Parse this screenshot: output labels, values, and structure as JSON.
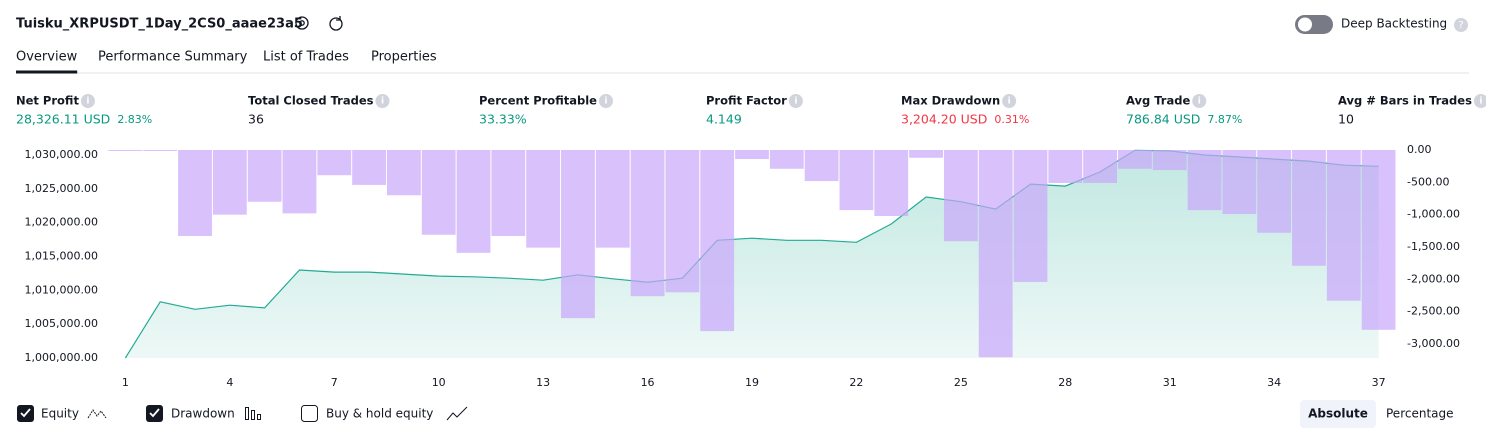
{
  "header": {
    "title": "Tuisku_XRPUSDT_1Day_2CS0_aaae23a5",
    "toggle": "Deep Backtesting"
  },
  "tabs": [
    "Overview",
    "Performance Summary",
    "List of Trades",
    "Properties"
  ],
  "metrics": [
    {
      "label": "Net Profit",
      "value": "28,326.11 USD",
      "extra": "2.83%"
    },
    {
      "label": "Total Closed Trades",
      "value": "36"
    },
    {
      "label": "Percent Profitable",
      "value": "33.33%"
    },
    {
      "label": "Profit Factor",
      "value": "4.149"
    },
    {
      "label": "Max Drawdown",
      "value": "3,204.20 USD",
      "extra": "0.31%"
    },
    {
      "label": "Avg Trade",
      "value": "786.84 USD",
      "extra": "7.87%"
    },
    {
      "label": "Avg # Bars in Trades",
      "value": "10"
    }
  ],
  "chart_data": {
    "type": "combo",
    "x": [
      1,
      2,
      3,
      4,
      5,
      6,
      7,
      8,
      9,
      10,
      11,
      12,
      13,
      14,
      15,
      16,
      17,
      18,
      19,
      20,
      21,
      22,
      23,
      24,
      25,
      26,
      27,
      28,
      29,
      30,
      31,
      32,
      33,
      34,
      35,
      36,
      37
    ],
    "xlim": [
      0.5,
      37.5
    ],
    "xticks": [
      1,
      4,
      7,
      10,
      13,
      16,
      19,
      22,
      25,
      28,
      31,
      34,
      37
    ],
    "ylim": [
      1000000,
      1030740
    ],
    "yticks": [
      {
        "value": 1000000,
        "label": "1,000,000.00"
      },
      {
        "value": 1005000,
        "label": "1,005,000.00"
      },
      {
        "value": 1010000,
        "label": "1,010,000.00"
      },
      {
        "value": 1015000,
        "label": "1,015,000.00"
      },
      {
        "value": 1020000,
        "label": "1,020,000.00"
      },
      {
        "value": 1025000,
        "label": "1,025,000.00"
      },
      {
        "value": 1030000,
        "label": "1,030,000.00"
      }
    ],
    "y2lim": [
      -3216,
      0
    ],
    "y2ticks": [
      {
        "value": 0,
        "label": "0.00"
      },
      {
        "value": -500,
        "label": "-500.00"
      },
      {
        "value": -1000,
        "label": "-1,000.00"
      },
      {
        "value": -1500,
        "label": "-1,500.00"
      },
      {
        "value": -2000,
        "label": "-2,000.00"
      },
      {
        "value": -2500,
        "label": "-2,500.00"
      },
      {
        "value": -3000,
        "label": "-3,000.00"
      }
    ],
    "series": [
      {
        "name": "Equity",
        "type": "area",
        "color": "#22ab94",
        "values": [
          1000000,
          1008300,
          1007200,
          1007800,
          1007400,
          1013000,
          1012700,
          1012700,
          1012400,
          1012100,
          1012000,
          1011800,
          1011500,
          1012300,
          1011700,
          1011200,
          1011800,
          1017400,
          1017700,
          1017400,
          1017400,
          1017100,
          1019800,
          1023800,
          1023100,
          1022000,
          1025700,
          1025400,
          1027500,
          1030700,
          1030600,
          1030000,
          1029700,
          1029400,
          1029100,
          1028500,
          1028326
        ]
      },
      {
        "name": "Drawdown",
        "type": "bar",
        "axis": "y2",
        "color": "#c9a6fb",
        "values": [
          0,
          0,
          -1330,
          -1000,
          -800,
          -980,
          -390,
          -540,
          -700,
          -1310,
          -1590,
          -1330,
          -1510,
          -2600,
          -1510,
          -2260,
          -2200,
          -2800,
          -140,
          -290,
          -480,
          -930,
          -1020,
          -120,
          -1410,
          -3204,
          -2040,
          -510,
          -510,
          -290,
          -310,
          -930,
          -990,
          -1280,
          -1790,
          -2330,
          -2780
        ]
      }
    ]
  },
  "footer": {
    "buy_hold": "Buy & hold equity",
    "absolute": "Absolute",
    "percentage": "Percentage"
  }
}
